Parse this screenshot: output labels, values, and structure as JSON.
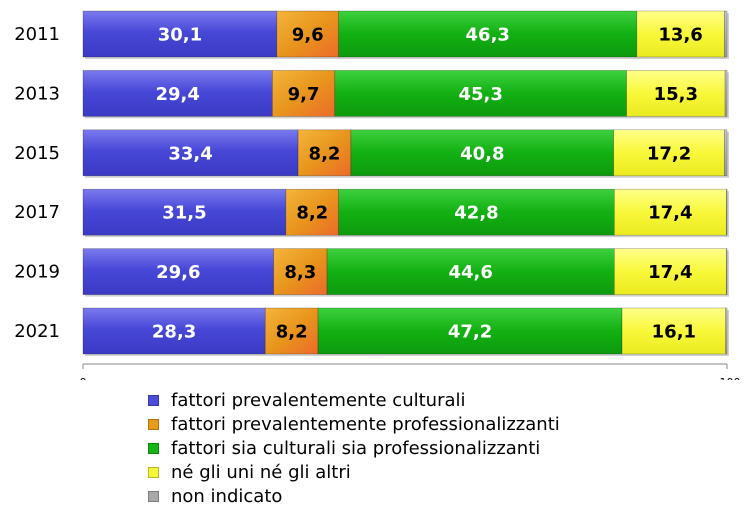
{
  "chart_data": {
    "type": "bar",
    "orientation": "horizontal",
    "stacked": true,
    "categories": [
      "2011",
      "2013",
      "2015",
      "2017",
      "2019",
      "2021"
    ],
    "series": [
      {
        "name": "fattori prevalentemente culturali",
        "color": "#4b4bdc",
        "values": [
          30.1,
          29.4,
          33.4,
          31.5,
          29.6,
          28.3
        ],
        "labels": [
          "30,1",
          "29,4",
          "33,4",
          "31,5",
          "29,6",
          "28,3"
        ]
      },
      {
        "name": "fattori prevalentemente professionalizzanti",
        "color": "#e89a1a",
        "values": [
          9.6,
          9.7,
          8.2,
          8.2,
          8.3,
          8.2
        ],
        "labels": [
          "9,6",
          "9,7",
          "8,2",
          "8,2",
          "8,3",
          "8,2"
        ]
      },
      {
        "name": "fattori sia culturali sia professionalizzanti",
        "color": "#15b515",
        "values": [
          46.3,
          45.3,
          40.8,
          42.8,
          44.6,
          47.2
        ],
        "labels": [
          "46,3",
          "45,3",
          "40,8",
          "42,8",
          "44,6",
          "47,2"
        ]
      },
      {
        "name": "né gli uni né gli altri",
        "color": "#f5f53a",
        "values": [
          13.6,
          15.3,
          17.2,
          17.4,
          17.4,
          16.1
        ],
        "labels": [
          "13,6",
          "15,3",
          "17,2",
          "17,4",
          "17,4",
          "16,1"
        ]
      },
      {
        "name": "non indicato",
        "color": "#a8a8a8",
        "values": [
          0.4,
          0.3,
          0.4,
          0.1,
          0.1,
          0.2
        ],
        "labels": [
          "",
          "",
          "",
          "",
          "",
          ""
        ]
      }
    ],
    "xlim": [
      0,
      100
    ],
    "xticks": [
      "0",
      "100"
    ],
    "grid": false,
    "legend_position": "bottom"
  }
}
